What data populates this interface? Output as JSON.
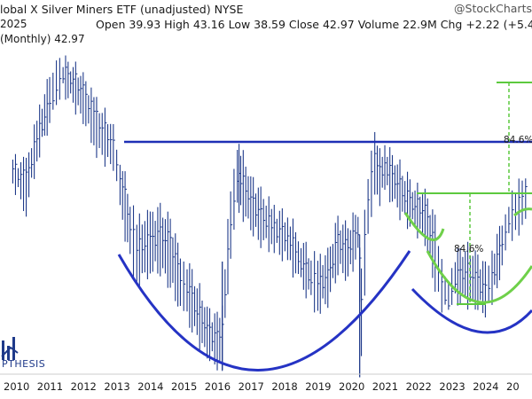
{
  "header": {
    "title": "lobal X Silver Miners ETF (unadjusted) NYSE",
    "date": "2025",
    "ohlc": "Open 39.93 High 43.16 Low 38.59 Close 42.97 Volume 22.9M Chg +2.22 (+5.45",
    "legend": "(Monthly) 42.97",
    "brand": "@StockCharts"
  },
  "logo": {
    "text": "PTHESIS",
    "icon": "bar-chart-logo-icon"
  },
  "colors": {
    "price": "#1f3a8a",
    "resistance": "#1e2fb5",
    "cup": "#2533c4",
    "handle": "#6fd04a",
    "measure": "#5cc93e"
  },
  "chart_data": {
    "type": "bar",
    "title": "lobal X Silver Miners ETF (unadjusted) NYSE",
    "x_ticks": [
      "2010",
      "2011",
      "2012",
      "2013",
      "2014",
      "2015",
      "2016",
      "2017",
      "2018",
      "2019",
      "2020",
      "2021",
      "2022",
      "2023",
      "2024",
      "20"
    ],
    "y_scale": "log",
    "ylim": [
      18,
      80
    ],
    "series": [
      {
        "name": "(Monthly)",
        "kind": "ohlc-monthly",
        "x": [
          2009.8,
          2010.2,
          2010.6,
          2010.9,
          2011.1,
          2011.3,
          2011.6,
          2011.9,
          2012.3,
          2012.8,
          2013.0,
          2013.3,
          2013.5,
          2013.9,
          2014.2,
          2014.5,
          2014.8,
          2015.0,
          2015.3,
          2015.6,
          2015.9,
          2016.05,
          2016.3,
          2016.5,
          2016.6,
          2016.9,
          2017.2,
          2017.6,
          2018.0,
          2018.4,
          2018.7,
          2018.9,
          2019.2,
          2019.5,
          2019.8,
          2020.1,
          2020.2,
          2020.4,
          2020.6,
          2020.75,
          2020.9,
          2021.2,
          2021.5,
          2021.8,
          2022.1,
          2022.4,
          2022.6,
          2022.8,
          2023.0,
          2023.3,
          2023.6,
          2023.9,
          2024.1,
          2024.4,
          2024.6,
          2024.8,
          2025.0,
          2025.2
        ],
        "values": [
          46,
          44,
          55,
          62,
          68,
          72,
          70,
          66,
          58,
          52,
          45,
          36,
          32,
          33,
          34,
          33,
          28,
          27,
          24,
          22,
          21,
          22,
          36,
          45,
          44,
          40,
          37,
          35,
          34,
          30,
          28,
          27,
          28,
          33,
          32,
          35,
          26,
          40,
          48,
          45,
          47,
          44,
          41,
          39,
          38,
          32,
          27,
          25,
          28,
          29,
          28,
          26,
          28,
          33,
          37,
          38,
          40,
          43
        ],
        "lows": [
          43,
          38,
          50,
          57,
          60,
          66,
          62,
          58,
          50,
          46,
          38,
          30,
          27,
          29,
          29,
          27,
          24,
          23,
          21,
          19.5,
          18.8,
          18.5,
          30,
          38,
          38,
          35,
          33,
          32,
          30,
          27,
          25,
          24,
          25,
          29,
          28,
          31,
          18.8,
          34,
          42,
          40,
          42,
          39,
          36,
          35,
          33,
          27,
          24,
          23.5,
          25,
          25,
          24.5,
          24,
          25,
          29,
          33,
          34,
          36,
          38.6
        ],
        "highs": [
          48,
          47,
          60,
          70,
          78,
          76,
          74,
          70,
          62,
          56,
          48,
          40,
          36,
          37,
          38,
          36,
          31,
          30,
          27,
          24,
          23,
          24,
          42,
          52,
          50,
          44,
          41,
          38,
          37,
          33,
          31,
          30,
          31,
          36,
          35,
          38,
          30,
          44,
          53,
          49,
          51,
          48,
          45,
          42,
          41,
          36,
          30,
          28,
          31,
          32,
          31,
          29,
          31,
          36,
          40,
          42,
          43,
          43.2
        ]
      }
    ],
    "annotations": [
      {
        "type": "resistance-line",
        "label": ""
      },
      {
        "type": "cup-curve",
        "label": ""
      },
      {
        "type": "cup-curve",
        "label": ""
      },
      {
        "type": "handle-curve",
        "label": ""
      },
      {
        "type": "measured-move",
        "label": "84.6%"
      },
      {
        "type": "measured-move",
        "label": "84.6%"
      }
    ]
  }
}
